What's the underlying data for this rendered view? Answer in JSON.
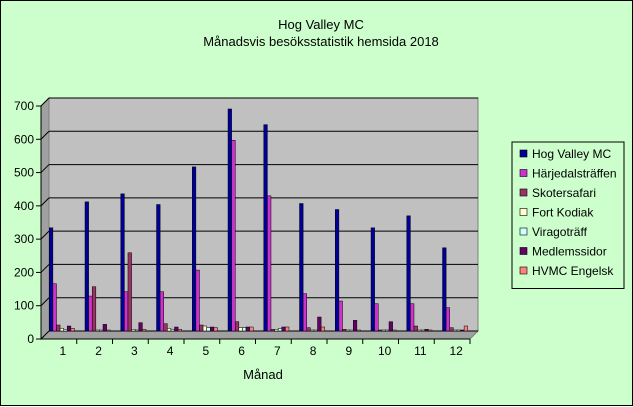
{
  "chart_data": {
    "type": "bar",
    "title": "Hog Valley MC",
    "subtitle": "Månadsvis besöksstatistik hemsida 2018",
    "xlabel": "Månad",
    "ylabel": "",
    "ylim": [
      0,
      700
    ],
    "yticks": [
      "0",
      "100",
      "200",
      "300",
      "400",
      "500",
      "600",
      "700"
    ],
    "categories": [
      "1",
      "2",
      "3",
      "4",
      "5",
      "6",
      "7",
      "8",
      "9",
      "10",
      "11",
      "12"
    ],
    "grid": true,
    "legend_position": "right",
    "plot_background": "#c0c0c0",
    "chart_background": "#ccffcc",
    "series": [
      {
        "name": "Hog Valley MC",
        "color": "#000099",
        "values": [
          310,
          388,
          412,
          380,
          493,
          667,
          620,
          383,
          365,
          310,
          346,
          250
        ]
      },
      {
        "name": "Härjedalsträffen",
        "color": "#cc33cc",
        "values": [
          142,
          105,
          118,
          118,
          183,
          573,
          406,
          112,
          90,
          82,
          82,
          70
        ]
      },
      {
        "name": "Skotersafari",
        "color": "#993366",
        "values": [
          18,
          133,
          235,
          22,
          18,
          28,
          5,
          10,
          5,
          3,
          15,
          10
        ]
      },
      {
        "name": "Fort Kodiak",
        "color": "#ffffcc",
        "values": [
          8,
          3,
          5,
          8,
          15,
          10,
          5,
          3,
          3,
          3,
          3,
          3
        ]
      },
      {
        "name": "Viragoträff",
        "color": "#ccffff",
        "values": [
          5,
          3,
          3,
          5,
          10,
          10,
          8,
          3,
          3,
          3,
          3,
          3
        ]
      },
      {
        "name": "Medlemssidor",
        "color": "#660066",
        "values": [
          15,
          20,
          25,
          12,
          12,
          12,
          12,
          42,
          32,
          28,
          5,
          3
        ]
      },
      {
        "name": "HVMC Engelsk",
        "color": "#ff8080",
        "values": [
          8,
          3,
          5,
          5,
          10,
          12,
          12,
          12,
          3,
          3,
          3,
          15
        ]
      }
    ]
  }
}
